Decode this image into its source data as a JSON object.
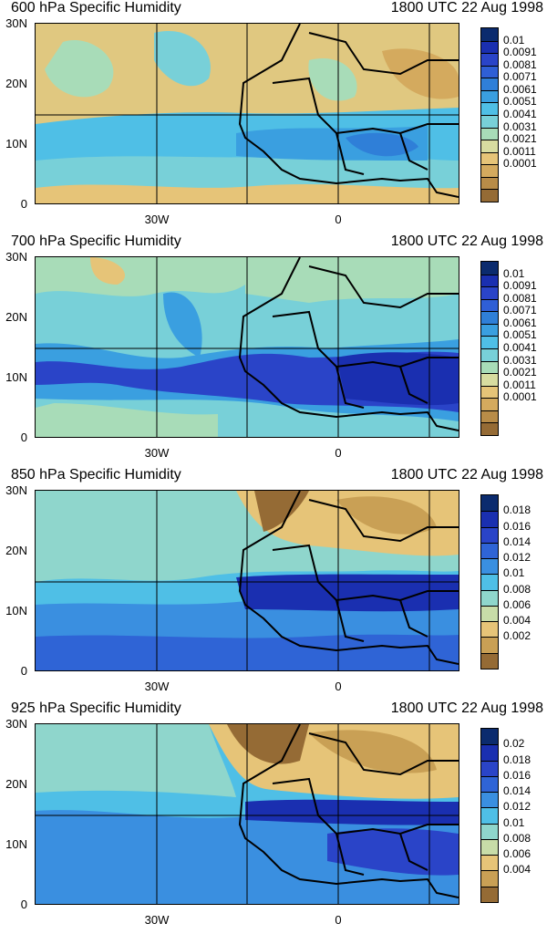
{
  "panels": [
    {
      "title": "600 hPa Specific Humidity",
      "time": "1800 UTC 22 Aug 1998",
      "colorbar_labels": [
        "0.01",
        "0.0091",
        "0.0081",
        "0.0071",
        "0.0061",
        "0.0051",
        "0.0041",
        "0.0031",
        "0.0021",
        "0.0011",
        "0.0001"
      ],
      "colorbar_colors": [
        "#0b2b6e",
        "#1a2fb0",
        "#2a44c8",
        "#2f5fd6",
        "#2f7fd8",
        "#3a9fe0",
        "#4fbfe6",
        "#78d0d8",
        "#a8dcb8",
        "#d8dca0",
        "#e6c478",
        "#d4aa5e",
        "#b88c48",
        "#956b35"
      ]
    },
    {
      "title": "700 hPa Specific Humidity",
      "time": "1800 UTC 22 Aug 1998",
      "colorbar_labels": [
        "0.01",
        "0.0091",
        "0.0081",
        "0.0071",
        "0.0061",
        "0.0051",
        "0.0041",
        "0.0031",
        "0.0021",
        "0.0011",
        "0.0001"
      ],
      "colorbar_colors": [
        "#0b2b6e",
        "#1a2fb0",
        "#2a44c8",
        "#2f5fd6",
        "#2f7fd8",
        "#3a9fe0",
        "#4fbfe6",
        "#78d0d8",
        "#a8dcb8",
        "#d8dca0",
        "#e6c478",
        "#d4aa5e",
        "#b88c48",
        "#956b35"
      ]
    },
    {
      "title": "850 hPa Specific Humidity",
      "time": "1800 UTC 22 Aug 1998",
      "colorbar_labels": [
        "0.018",
        "0.016",
        "0.014",
        "0.012",
        "0.01",
        "0.008",
        "0.006",
        "0.004",
        "0.002"
      ],
      "colorbar_colors": [
        "#0b2b6e",
        "#1a2fb0",
        "#2a44c8",
        "#2f64d6",
        "#3a8fe0",
        "#4fbfe6",
        "#8fd6cc",
        "#c8dca8",
        "#e6c478",
        "#c9a055",
        "#956b35"
      ]
    },
    {
      "title": "925 hPa Specific Humidity",
      "time": "1800 UTC 22 Aug 1998",
      "colorbar_labels": [
        "0.02",
        "0.018",
        "0.016",
        "0.014",
        "0.012",
        "0.01",
        "0.008",
        "0.006",
        "0.004"
      ],
      "colorbar_colors": [
        "#0b2b6e",
        "#1a2fb0",
        "#2a44c8",
        "#2f64d6",
        "#3a8fe0",
        "#4fbfe6",
        "#8fd6cc",
        "#c8dca8",
        "#e6c478",
        "#c9a055",
        "#956b35"
      ]
    }
  ],
  "axes": {
    "y_ticks": [
      "30N",
      "20N",
      "10N",
      "0"
    ],
    "x_ticks": [
      "30W",
      "0"
    ]
  }
}
